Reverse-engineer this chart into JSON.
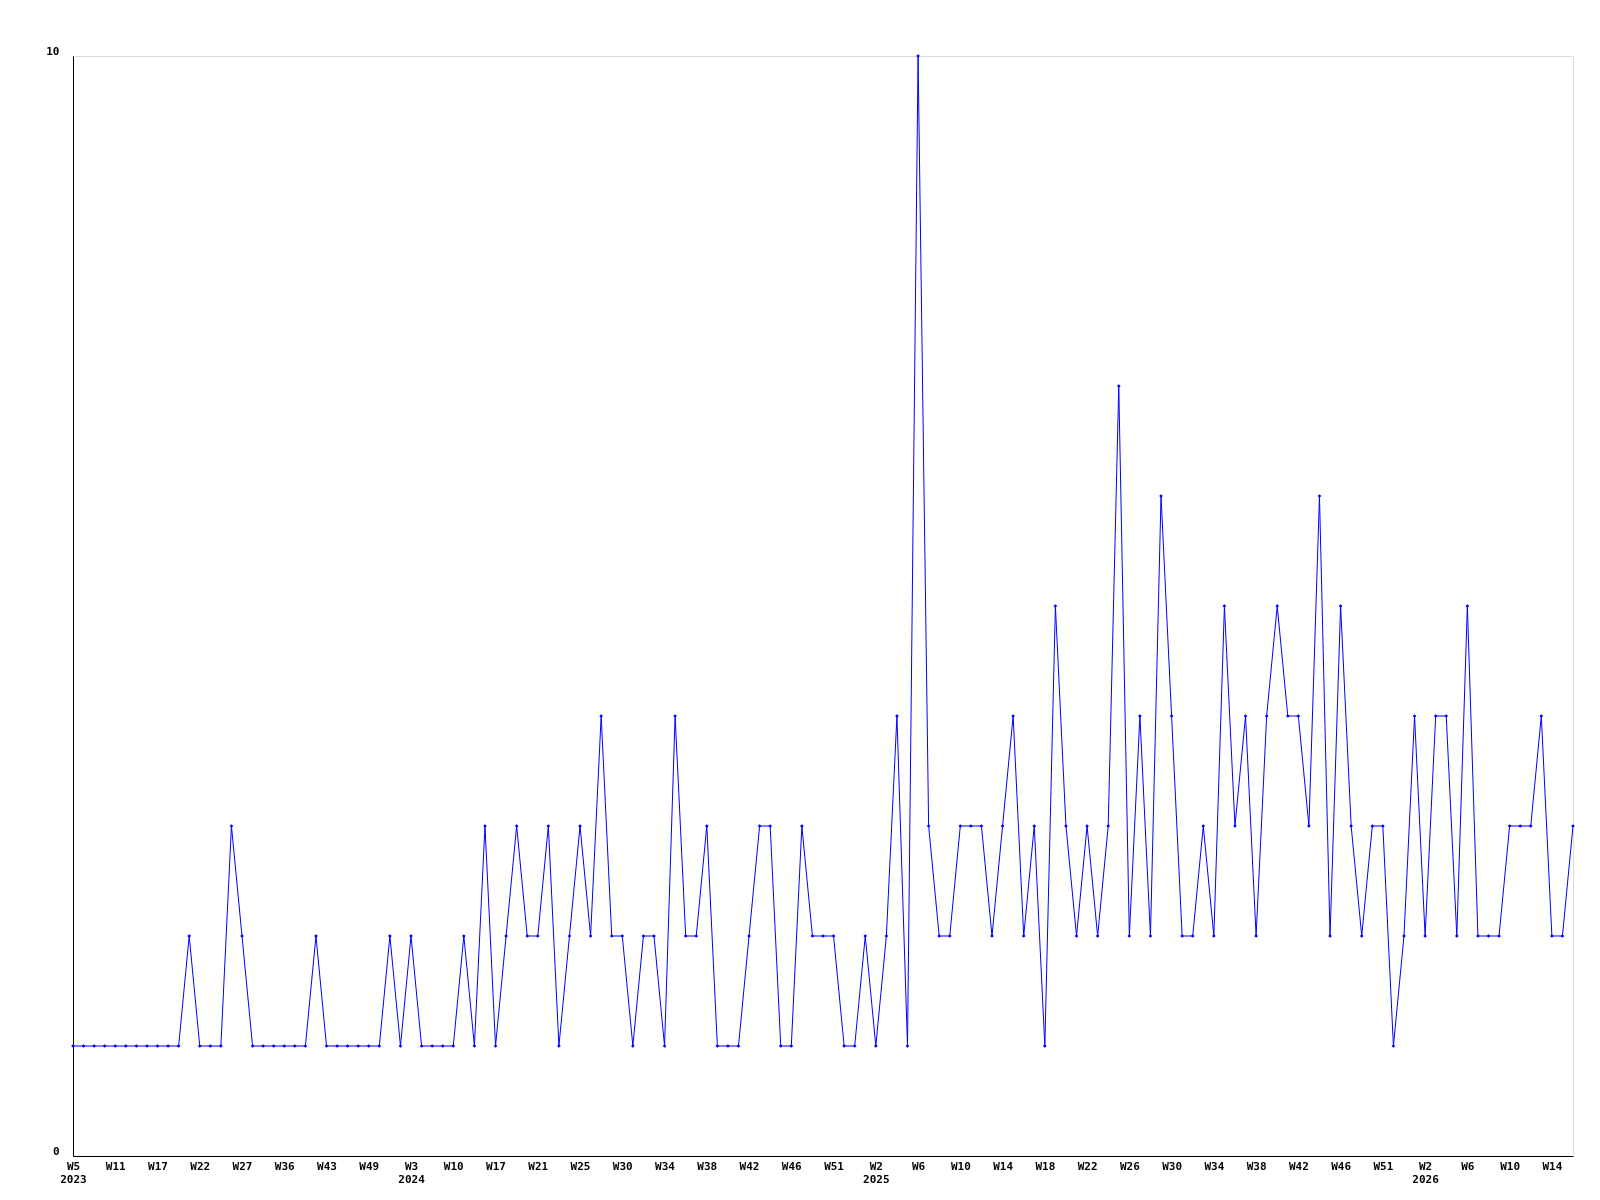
{
  "chart_data": {
    "type": "line",
    "categories": [
      "W5\n2023",
      null,
      null,
      null,
      "W11",
      null,
      null,
      null,
      "W17",
      null,
      null,
      null,
      "W22",
      null,
      null,
      null,
      "W27",
      null,
      null,
      null,
      "W36",
      null,
      null,
      null,
      "W43",
      null,
      null,
      null,
      "W49",
      null,
      null,
      null,
      "W3\n2024",
      null,
      null,
      null,
      "W10",
      null,
      null,
      null,
      "W17",
      null,
      null,
      null,
      "W21",
      null,
      null,
      null,
      "W25",
      null,
      null,
      null,
      "W30",
      null,
      null,
      null,
      "W34",
      null,
      null,
      null,
      "W38",
      null,
      null,
      null,
      "W42",
      null,
      null,
      null,
      "W46",
      null,
      null,
      null,
      "W51",
      null,
      null,
      null,
      "W2\n2025",
      null,
      null,
      null,
      "W6",
      null,
      null,
      null,
      "W10",
      null,
      null,
      null,
      "W14",
      null,
      null,
      null,
      "W18",
      null,
      null,
      null,
      "W22",
      null,
      null,
      null,
      "W26",
      null,
      null,
      null,
      "W30",
      null,
      null,
      null,
      "W34",
      null,
      null,
      null,
      "W38",
      null,
      null,
      null,
      "W42",
      null,
      null,
      null,
      "W46",
      null,
      null,
      null,
      "W51",
      null,
      null,
      null,
      "W2\n2026",
      null,
      null,
      null,
      "W6",
      null,
      null,
      null,
      "W10",
      null,
      null,
      null,
      "W14",
      null,
      null
    ],
    "series": [
      {
        "color": "#0000ff",
        "values": [
          1,
          1,
          1,
          1,
          1,
          1,
          1,
          1,
          1,
          1,
          1,
          2,
          1,
          1,
          1,
          3,
          2,
          1,
          1,
          1,
          1,
          1,
          1,
          2,
          1,
          1,
          1,
          1,
          1,
          1,
          2,
          1,
          2,
          1,
          1,
          1,
          1,
          2,
          1,
          3,
          1,
          2,
          3,
          2,
          2,
          3,
          1,
          2,
          3,
          2,
          4,
          2,
          2,
          1,
          2,
          2,
          1,
          4,
          2,
          2,
          3,
          1,
          1,
          1,
          2,
          3,
          3,
          1,
          1,
          3,
          2,
          2,
          2,
          1,
          1,
          2,
          1,
          2,
          4,
          1,
          10,
          3,
          2,
          2,
          3,
          3,
          3,
          2,
          3,
          4,
          2,
          3,
          1,
          5,
          3,
          2,
          3,
          2,
          3,
          7,
          2,
          4,
          2,
          6,
          4,
          2,
          2,
          3,
          2,
          5,
          3,
          4,
          2,
          4,
          5,
          4,
          4,
          3,
          6,
          2,
          5,
          3,
          2,
          3,
          3,
          1,
          2,
          4,
          2,
          4,
          4,
          2,
          5,
          2,
          2,
          2,
          3,
          3,
          3,
          4,
          2,
          2,
          3
        ]
      }
    ],
    "ylim": [
      0,
      10
    ],
    "yticks": [
      0,
      10
    ],
    "grid": false,
    "legend": false,
    "marker": "diamond",
    "line_style": "solid"
  }
}
